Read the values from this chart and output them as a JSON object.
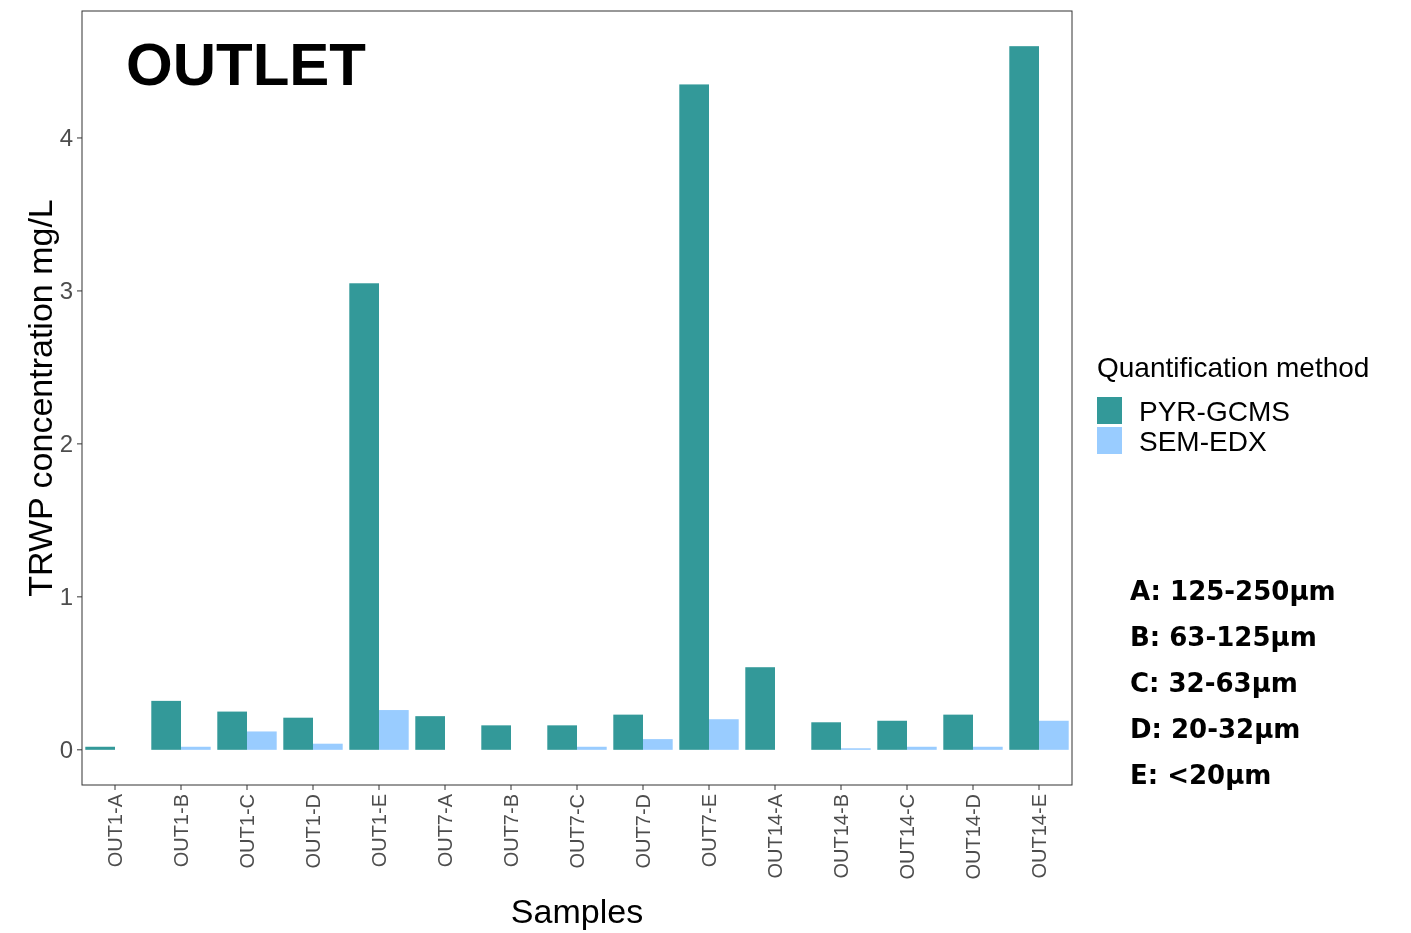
{
  "chart_data": {
    "type": "bar",
    "title": "OUTLET",
    "xlabel": "Samples",
    "ylabel": "TRWP concentration mg/L",
    "legend_title": "Quantification method",
    "categories": [
      "OUT1-A",
      "OUT1-B",
      "OUT1-C",
      "OUT1-D",
      "OUT1-E",
      "OUT7-A",
      "OUT7-B",
      "OUT7-C",
      "OUT7-D",
      "OUT7-E",
      "OUT14-A",
      "OUT14-B",
      "OUT14-C",
      "OUT14-D",
      "OUT14-E"
    ],
    "series": [
      {
        "name": "PYR-GCMS",
        "color": "#339999",
        "values": [
          0.02,
          0.32,
          0.25,
          0.21,
          3.05,
          0.22,
          0.16,
          0.16,
          0.23,
          4.35,
          0.54,
          0.18,
          0.19,
          0.23,
          4.6
        ]
      },
      {
        "name": "SEM-EDX",
        "color": "#99ccff",
        "values": [
          null,
          0.02,
          0.12,
          0.04,
          0.26,
          null,
          null,
          0.02,
          0.07,
          0.2,
          null,
          0.01,
          0.02,
          0.02,
          0.19
        ]
      }
    ],
    "ylim": [
      -0.23,
      4.83
    ],
    "yticks": [
      0,
      1,
      2,
      3,
      4
    ],
    "grid": false,
    "legend": "right",
    "annotations": [
      "A: 125-250µm",
      "B: 63-125µm",
      "C: 32-63µm",
      "D: 20-32µm",
      "E: <20µm"
    ]
  }
}
